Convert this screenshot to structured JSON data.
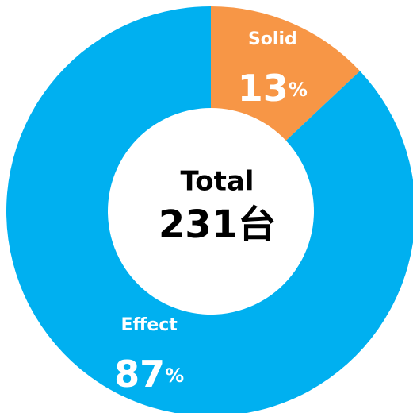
{
  "chart_data": {
    "type": "donut",
    "categories": [
      "Solid",
      "Effect"
    ],
    "values": [
      13,
      87
    ],
    "value_labels": [
      "13%",
      "87%"
    ],
    "colors": [
      "#f79646",
      "#00b0f0"
    ],
    "center_title": "Total",
    "center_value": "231台"
  }
}
